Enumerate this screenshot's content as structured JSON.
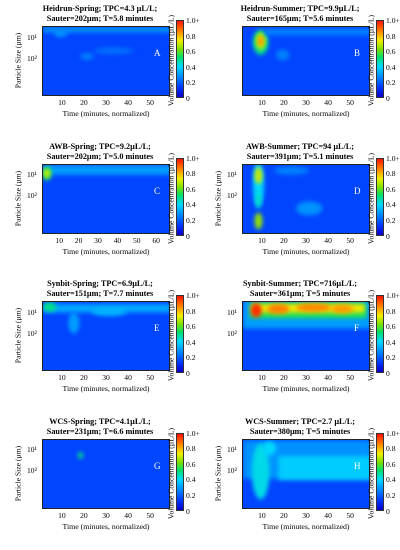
{
  "chart_data": [
    {
      "type": "heatmap",
      "panel_letter": "A",
      "title_line1": "Heidrun-Spring; TPC=4.3 µL/L;",
      "title_line2": "Sauter=202µm; T=5.8 minutes",
      "xlabel": "Time (minutes, normalized)",
      "ylabel": "Particle Size (µm)",
      "colorbar_label": "Volume Concentration (µL/L)",
      "x_ticks": [
        "10",
        "20",
        "30",
        "40",
        "50"
      ],
      "y_ticks": [
        "10²",
        "10¹"
      ],
      "colorbar_ticks": [
        "0",
        "0.2",
        "0.4",
        "0.6",
        "0.8",
        "1.0+"
      ],
      "xlim": [
        0,
        58
      ],
      "features": [
        {
          "type": "band",
          "x0": 0,
          "x1": 58,
          "y": 0.96,
          "thickness": 0.08,
          "level": 0.28
        },
        {
          "type": "blob",
          "x": 20,
          "y": 0.58,
          "rx": 3,
          "ry": 0.05,
          "level": 0.25
        },
        {
          "type": "blob",
          "x": 32,
          "y": 0.66,
          "rx": 9,
          "ry": 0.05,
          "level": 0.22
        },
        {
          "type": "blob",
          "x": 8,
          "y": 0.9,
          "rx": 3,
          "ry": 0.04,
          "level": 0.3
        }
      ]
    },
    {
      "type": "heatmap",
      "panel_letter": "B",
      "title_line1": "Heidrun-Summer; TPC=9.9µL/L;",
      "title_line2": "Sauter=165µm; T=5.6 minutes",
      "xlabel": "Time (minutes, normalized)",
      "ylabel": "",
      "colorbar_label": "Volume Concentration (µL/L)",
      "x_ticks": [
        "10",
        "20",
        "30",
        "40",
        "50"
      ],
      "y_ticks": [],
      "colorbar_ticks": [
        "0",
        "0.2",
        "0.4",
        "0.6",
        "0.8",
        "1.0+"
      ],
      "xlim": [
        0,
        58
      ],
      "features": [
        {
          "type": "blob",
          "x": 8,
          "y": 0.78,
          "rx": 3.5,
          "ry": 0.18,
          "level": 0.5
        },
        {
          "type": "blob",
          "x": 8,
          "y": 0.8,
          "rx": 2.2,
          "ry": 0.12,
          "level": 0.7
        },
        {
          "type": "blob",
          "x": 8,
          "y": 0.8,
          "rx": 1.2,
          "ry": 0.07,
          "level": 0.85
        },
        {
          "type": "band",
          "x0": 10,
          "x1": 58,
          "y": 0.93,
          "thickness": 0.1,
          "level": 0.25
        },
        {
          "type": "blob",
          "x": 18,
          "y": 0.6,
          "rx": 3,
          "ry": 0.08,
          "level": 0.25
        }
      ]
    },
    {
      "type": "heatmap",
      "panel_letter": "C",
      "title_line1": "AWB-Spring; TPC=9.2µL/L;",
      "title_line2": "Sauter=202µm; T=5.0 minutes",
      "xlabel": "Time (minutes, normalized)",
      "ylabel": "Particle Size (µm)",
      "colorbar_label": "Volume Concentration (µL/L)",
      "x_ticks": [
        "10",
        "20",
        "30",
        "40",
        "50",
        "60"
      ],
      "y_ticks": [
        "10²",
        "10¹"
      ],
      "colorbar_ticks": [
        "0",
        "0.2",
        "0.4",
        "0.6",
        "0.8",
        "1.0+"
      ],
      "xlim": [
        0,
        66
      ],
      "features": [
        {
          "type": "band",
          "x0": 0,
          "x1": 66,
          "y": 0.93,
          "thickness": 0.14,
          "level": 0.3
        },
        {
          "type": "blob",
          "x": 2,
          "y": 0.88,
          "rx": 2.5,
          "ry": 0.1,
          "level": 0.55
        },
        {
          "type": "blob",
          "x": 2,
          "y": 0.88,
          "rx": 1.5,
          "ry": 0.06,
          "level": 0.72
        }
      ]
    },
    {
      "type": "heatmap",
      "panel_letter": "D",
      "title_line1": "AWB-Summer; TPC=94 µL/L;",
      "title_line2": "Sauter=391µm; T=5.1 minutes",
      "xlabel": "Time (minutes, normalized)",
      "ylabel": "Particle Size (µm)",
      "colorbar_label": "Volume Concentration (µL/L)",
      "x_ticks": [
        "10",
        "20",
        "30",
        "40",
        "50"
      ],
      "y_ticks": [
        "10²",
        "10¹"
      ],
      "colorbar_ticks": [
        "0",
        "0.2",
        "0.4",
        "0.6",
        "0.8",
        "1.0+"
      ],
      "xlim": [
        0,
        58
      ],
      "features": [
        {
          "type": "blob",
          "x": 7,
          "y": 0.72,
          "rx": 2.5,
          "ry": 0.32,
          "level": 0.4
        },
        {
          "type": "blob",
          "x": 7,
          "y": 0.85,
          "rx": 1.8,
          "ry": 0.12,
          "level": 0.7
        },
        {
          "type": "blob",
          "x": 7,
          "y": 0.2,
          "rx": 1.8,
          "ry": 0.12,
          "level": 0.65
        },
        {
          "type": "blob",
          "x": 7,
          "y": 0.5,
          "rx": 1.2,
          "ry": 0.12,
          "level": 0.45
        },
        {
          "type": "blob",
          "x": 30,
          "y": 0.38,
          "rx": 6,
          "ry": 0.1,
          "level": 0.28
        },
        {
          "type": "blob",
          "x": 22,
          "y": 0.92,
          "rx": 8,
          "ry": 0.06,
          "level": 0.25
        }
      ]
    },
    {
      "type": "heatmap",
      "panel_letter": "E",
      "title_line1": "Synbit-Spring; TPC=6.9µL/L;",
      "title_line2": "Sauter=151µm; T=7.7 minutes",
      "xlabel": "Time (minutes, normalized)",
      "ylabel": "Particle Size (µm)",
      "colorbar_label": "Volume Concentration (µL/L)",
      "x_ticks": [
        "10",
        "20",
        "30",
        "40",
        "50"
      ],
      "y_ticks": [
        "10²",
        "10¹"
      ],
      "colorbar_ticks": [
        "0",
        "0.2",
        "0.4",
        "0.6",
        "0.8",
        "1.0+"
      ],
      "xlim": [
        0,
        58
      ],
      "features": [
        {
          "type": "band",
          "x0": 0,
          "x1": 58,
          "y": 0.91,
          "thickness": 0.12,
          "level": 0.32
        },
        {
          "type": "blob",
          "x": 3,
          "y": 0.93,
          "rx": 3,
          "ry": 0.07,
          "level": 0.5
        },
        {
          "type": "blob",
          "x": 14,
          "y": 0.7,
          "rx": 2.5,
          "ry": 0.15,
          "level": 0.3
        },
        {
          "type": "blob",
          "x": 30,
          "y": 0.86,
          "rx": 8,
          "ry": 0.06,
          "level": 0.34
        }
      ]
    },
    {
      "type": "heatmap",
      "panel_letter": "F",
      "title_line1": "Synbit-Summer; TPC=716µL/L;",
      "title_line2": "Sauter=361µm; T=5 minutes",
      "xlabel": "Time (minutes, normalized)",
      "ylabel": "",
      "colorbar_label": "Volume Concentration (µL/L)",
      "x_ticks": [
        "10",
        "20",
        "30",
        "40",
        "50"
      ],
      "y_ticks": [
        "10²",
        "10¹"
      ],
      "colorbar_ticks": [
        "0",
        "0.2",
        "0.4",
        "0.6",
        "0.8",
        "1.0+"
      ],
      "xlim": [
        0,
        58
      ],
      "features": [
        {
          "type": "band",
          "x0": 0,
          "x1": 58,
          "y": 0.82,
          "thickness": 0.4,
          "level": 0.3
        },
        {
          "type": "band",
          "x0": 3,
          "x1": 56,
          "y": 0.88,
          "thickness": 0.22,
          "level": 0.55
        },
        {
          "type": "band",
          "x0": 4,
          "x1": 55,
          "y": 0.91,
          "thickness": 0.12,
          "level": 0.75
        },
        {
          "type": "blob",
          "x": 6,
          "y": 0.88,
          "rx": 2.5,
          "ry": 0.1,
          "level": 0.97
        },
        {
          "type": "blob",
          "x": 16,
          "y": 0.9,
          "rx": 5,
          "ry": 0.07,
          "level": 0.87
        },
        {
          "type": "blob",
          "x": 32,
          "y": 0.92,
          "rx": 8,
          "ry": 0.06,
          "level": 0.86
        },
        {
          "type": "blob",
          "x": 45,
          "y": 0.9,
          "rx": 5,
          "ry": 0.06,
          "level": 0.84
        }
      ]
    },
    {
      "type": "heatmap",
      "panel_letter": "G",
      "title_line1": "WCS-Spring; TPC=4.1µL/L;",
      "title_line2": "Sauter=231µm; T=6.6 minutes",
      "xlabel": "Time (minutes, normalized)",
      "ylabel": "Particle Size (µm)",
      "colorbar_label": "Volume Concentration (µL/L)",
      "x_ticks": [
        "10",
        "20",
        "30",
        "40",
        "50"
      ],
      "y_ticks": [
        "10²",
        "10¹"
      ],
      "colorbar_ticks": [
        "0",
        "0.2",
        "0.4",
        "0.6",
        "0.8",
        "1.0+"
      ],
      "xlim": [
        0,
        58
      ],
      "features": [
        {
          "type": "blob",
          "x": 17,
          "y": 0.78,
          "rx": 1.2,
          "ry": 0.05,
          "level": 0.5
        }
      ]
    },
    {
      "type": "heatmap",
      "panel_letter": "H",
      "title_line1": "WCS-Summer; TPC=2.7 µL/L;",
      "title_line2": "Sauter=380µm; T=5 minutes",
      "xlabel": "Time (minutes, normalized)",
      "ylabel": "Particle Size (µm)",
      "colorbar_label": "Volume Concentration (µL/L)",
      "x_ticks": [
        "10",
        "20",
        "30",
        "40",
        "50"
      ],
      "y_ticks": [
        "10²",
        "10¹"
      ],
      "colorbar_ticks": [
        "0",
        "0.2",
        "0.4",
        "0.6",
        "0.8",
        "1.0+"
      ],
      "xlim": [
        0,
        58
      ],
      "features": [
        {
          "type": "band",
          "x0": 0,
          "x1": 58,
          "y": 0.72,
          "thickness": 0.55,
          "level": 0.28
        },
        {
          "type": "blob",
          "x": 8,
          "y": 0.55,
          "rx": 4,
          "ry": 0.4,
          "level": 0.42
        },
        {
          "type": "band",
          "x0": 16,
          "x1": 58,
          "y": 0.6,
          "thickness": 0.34,
          "level": 0.38
        },
        {
          "type": "blob",
          "x": 12,
          "y": 0.88,
          "rx": 3,
          "ry": 0.1,
          "level": 0.4
        }
      ]
    }
  ]
}
